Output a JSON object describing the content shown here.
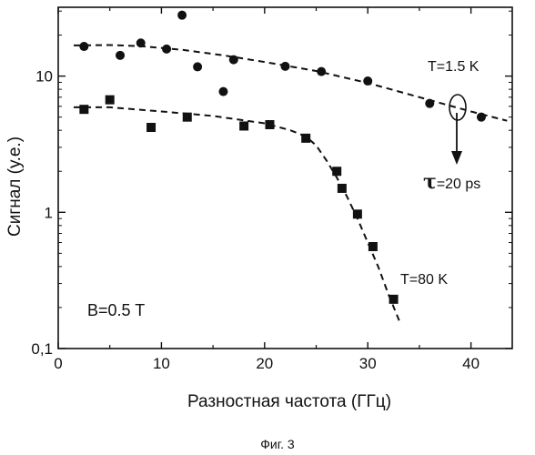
{
  "chart_data": {
    "type": "scatter",
    "title": "",
    "xlabel": "Разностная частота (ГГц)",
    "ylabel": "Сигнал (у.е.)",
    "xlim": [
      0,
      44
    ],
    "ylim": [
      0.1,
      32
    ],
    "yscale": "log",
    "x_ticks": [
      0,
      10,
      20,
      30,
      40
    ],
    "x_tick_labels": [
      "0",
      "10",
      "20",
      "30",
      "40"
    ],
    "y_ticks": [
      0.1,
      1,
      10
    ],
    "y_tick_labels": [
      "0,1",
      "1",
      "10"
    ],
    "grid": false,
    "series": [
      {
        "name": "T=1.5 K",
        "marker": "circle",
        "points": [
          [
            2.5,
            16.5
          ],
          [
            6,
            14.2
          ],
          [
            8,
            17.5
          ],
          [
            12,
            28
          ],
          [
            10.5,
            15.8
          ],
          [
            13.5,
            11.7
          ],
          [
            16,
            7.7
          ],
          [
            17,
            13.2
          ],
          [
            22,
            11.8
          ],
          [
            25.5,
            10.8
          ],
          [
            30,
            9.2
          ],
          [
            36,
            6.3
          ],
          [
            41,
            5.0
          ]
        ],
        "fit": [
          [
            1.5,
            16.8
          ],
          [
            5,
            16.9
          ],
          [
            8,
            16.6
          ],
          [
            12,
            15.6
          ],
          [
            16,
            14.2
          ],
          [
            20,
            12.7
          ],
          [
            25,
            10.9
          ],
          [
            30,
            8.9
          ],
          [
            35,
            7.0
          ],
          [
            40,
            5.5
          ],
          [
            43.5,
            4.7
          ]
        ]
      },
      {
        "name": "T=80 K",
        "marker": "square",
        "points": [
          [
            2.5,
            5.7
          ],
          [
            5,
            6.7
          ],
          [
            9,
            4.2
          ],
          [
            12.5,
            5.0
          ],
          [
            18,
            4.3
          ],
          [
            20.5,
            4.4
          ],
          [
            24,
            3.5
          ],
          [
            27,
            2.0
          ],
          [
            27.5,
            1.5
          ],
          [
            29,
            0.97
          ],
          [
            30.5,
            0.56
          ],
          [
            32.5,
            0.23
          ]
        ],
        "fit": [
          [
            1.5,
            5.9
          ],
          [
            5,
            5.9
          ],
          [
            10,
            5.5
          ],
          [
            15,
            5.1
          ],
          [
            20,
            4.5
          ],
          [
            22.5,
            4.0
          ],
          [
            24,
            3.6
          ],
          [
            25,
            3.1
          ],
          [
            26,
            2.4
          ],
          [
            27,
            1.8
          ],
          [
            28,
            1.3
          ],
          [
            29,
            0.9
          ],
          [
            30,
            0.6
          ],
          [
            31,
            0.4
          ],
          [
            32,
            0.25
          ],
          [
            33.2,
            0.15
          ]
        ]
      }
    ],
    "annotations": {
      "b_field": "B=0.5 T",
      "t_high": "T=1.5 K",
      "t_low": "T=80 K",
      "tau_symbol": "τ",
      "tau_value": "=20 ps"
    },
    "caption": "Фиг. 3"
  }
}
